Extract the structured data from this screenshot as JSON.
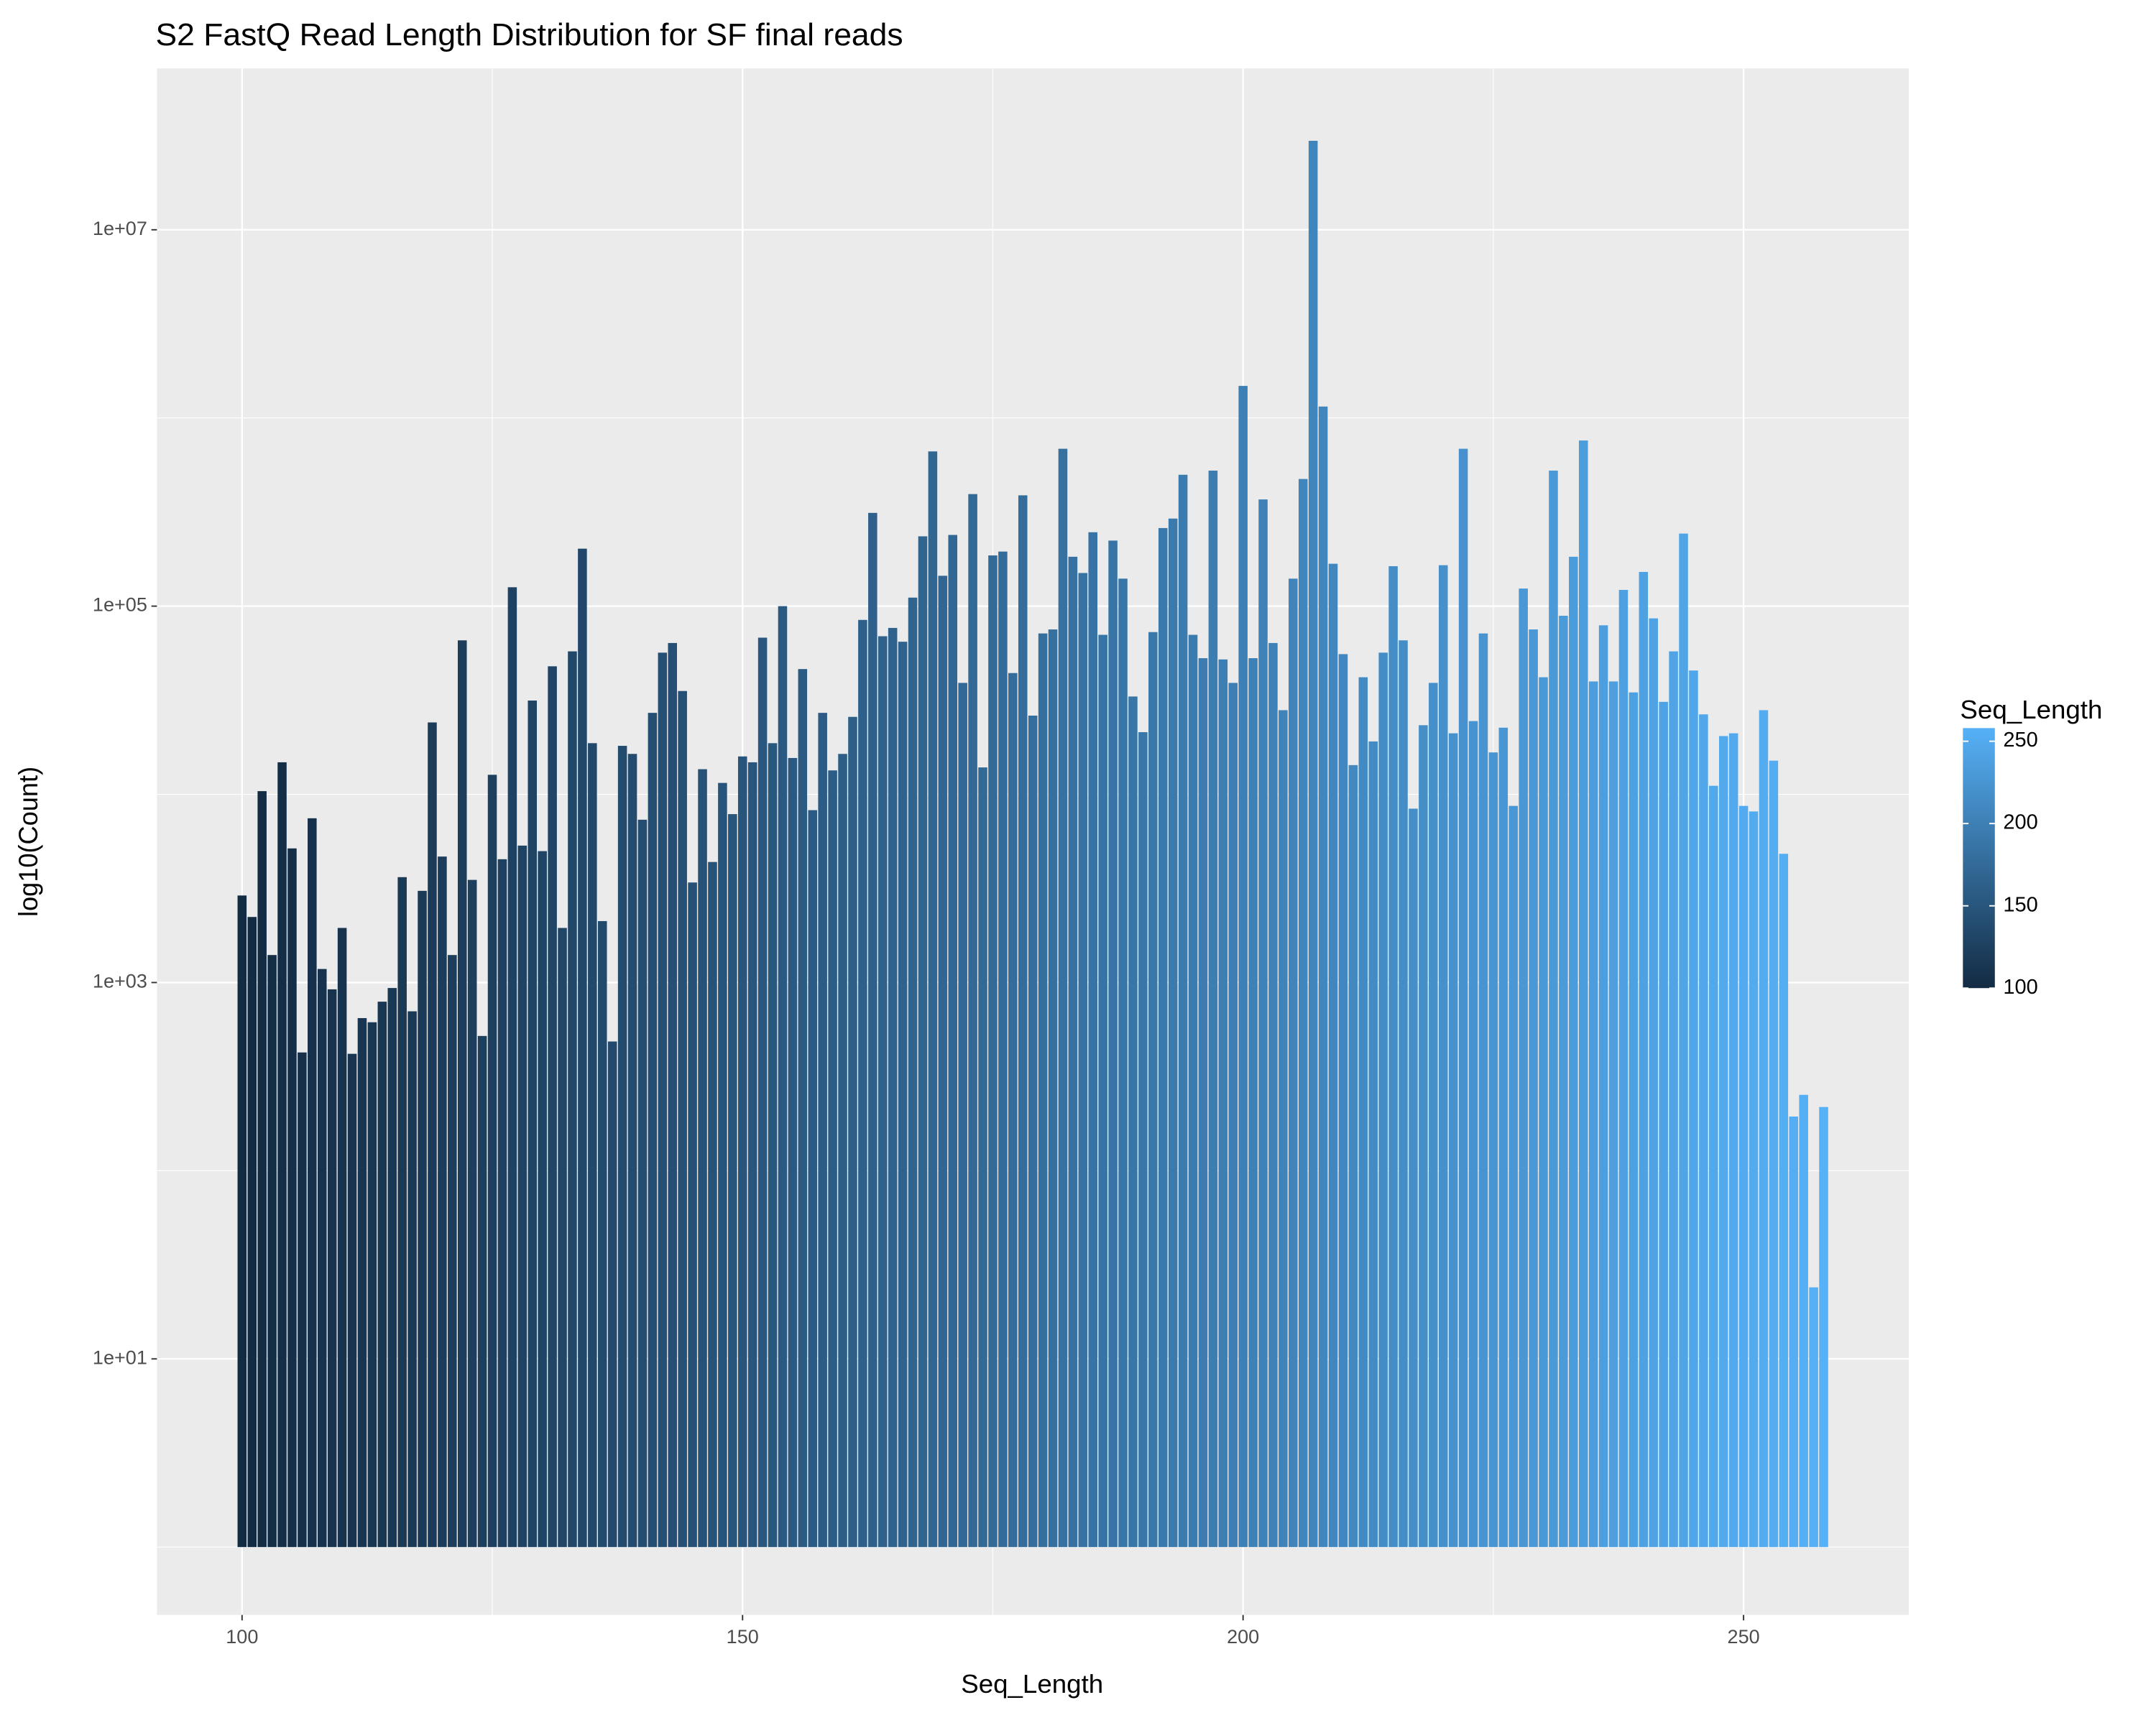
{
  "chart_data": {
    "type": "bar",
    "title": "S2 FastQ Read Length Distribution for SF final reads",
    "x_label": "Seq_Length",
    "y_label": "log10(Count)",
    "legend_title": "Seq_Length",
    "x": [
      100,
      101,
      102,
      103,
      104,
      105,
      106,
      107,
      108,
      109,
      110,
      111,
      112,
      113,
      114,
      115,
      116,
      117,
      118,
      119,
      120,
      121,
      122,
      123,
      124,
      125,
      126,
      127,
      128,
      129,
      130,
      131,
      132,
      133,
      134,
      135,
      136,
      137,
      138,
      139,
      140,
      141,
      142,
      143,
      144,
      145,
      146,
      147,
      148,
      149,
      150,
      151,
      152,
      153,
      154,
      155,
      156,
      157,
      158,
      159,
      160,
      161,
      162,
      163,
      164,
      165,
      166,
      167,
      168,
      169,
      170,
      171,
      172,
      173,
      174,
      175,
      176,
      177,
      178,
      179,
      180,
      181,
      182,
      183,
      184,
      185,
      186,
      187,
      188,
      189,
      190,
      191,
      192,
      193,
      194,
      195,
      196,
      197,
      198,
      199,
      200,
      201,
      202,
      203,
      204,
      205,
      206,
      207,
      208,
      209,
      210,
      211,
      212,
      213,
      214,
      215,
      216,
      217,
      218,
      219,
      220,
      221,
      222,
      223,
      224,
      225,
      226,
      227,
      228,
      229,
      230,
      231,
      232,
      233,
      234,
      235,
      236,
      237,
      238,
      239,
      240,
      241,
      242,
      243,
      244,
      245,
      246,
      247,
      248,
      249,
      250,
      251,
      252,
      253,
      254,
      255,
      256,
      257,
      258
    ],
    "values": [
      2900,
      2230,
      10400,
      1400,
      14800,
      5160,
      425,
      7460,
      1180,
      920,
      1950,
      418,
      647,
      615,
      791,
      935,
      3630,
      703,
      3070,
      24100,
      4670,
      1400,
      65800,
      3510,
      520,
      12700,
      4520,
      126000,
      5340,
      31500,
      4990,
      47900,
      1950,
      57500,
      202000,
      18700,
      2120,
      486,
      18100,
      16400,
      7330,
      27100,
      56600,
      63700,
      35400,
      3400,
      13600,
      4370,
      11500,
      7850,
      15900,
      14800,
      68000,
      18700,
      100000,
      15600,
      46300,
      8240,
      27100,
      13400,
      16400,
      25800,
      84500,
      313000,
      69200,
      76600,
      64700,
      111000,
      235000,
      664000,
      145000,
      239000,
      39100,
      394000,
      13900,
      186000,
      195000,
      44100,
      388000,
      26200,
      71600,
      75200,
      686000,
      183000,
      150000,
      247000,
      70400,
      223000,
      140000,
      33100,
      21400,
      72800,
      260000,
      292000,
      499000,
      70400,
      52900,
      525000,
      52100,
      39100,
      1480000,
      52900,
      369000,
      63700,
      28000,
      140000,
      474000,
      29700000,
      1150000,
      168000,
      55600,
      14300,
      41900,
      19100,
      56600,
      163000,
      65800,
      8390,
      23300,
      39100,
      165000,
      21100,
      686000,
      24500,
      71600,
      16700,
      22600,
      8680,
      124000,
      75200,
      41900,
      525000,
      88900,
      183000,
      759000,
      39800,
      79100,
      39800,
      122000,
      34800,
      152000,
      86100,
      31000,
      57500,
      243000,
      45500,
      26600,
      11100,
      20400,
      21100,
      8680,
      8110,
      28000,
      15100,
      4830,
      194,
      253,
      24,
      218
    ],
    "xlim": [
      91.5,
      266.5
    ],
    "xticks": [
      100,
      150,
      200,
      250
    ],
    "minor_xticks": [
      125,
      175,
      225
    ],
    "ylim": [
      0.436,
      72000000
    ],
    "log_y": true,
    "yticks": [
      {
        "value": 10,
        "label": "1e+01"
      },
      {
        "value": 1000,
        "label": "1e+03"
      },
      {
        "value": 100000,
        "label": "1e+05"
      },
      {
        "value": 10000000,
        "label": "1e+07"
      }
    ],
    "minor_yticks": [
      1,
      100,
      10000,
      1000000
    ],
    "grid": true,
    "color_scale": {
      "low": "#132B43",
      "high": "#56B1F7",
      "limits": [
        100,
        258
      ],
      "ticks": [
        100,
        150,
        200,
        250
      ]
    },
    "legend_position": "right"
  }
}
